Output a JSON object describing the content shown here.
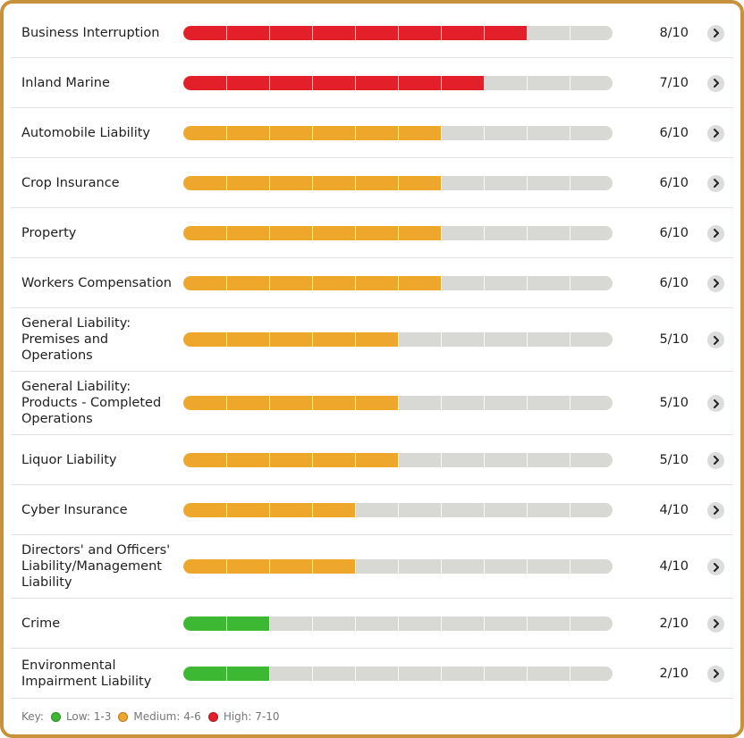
{
  "max_score": 10,
  "colors": {
    "high": "#e3202a",
    "medium": "#eea72a",
    "low": "#3cb832",
    "track": "#d8d8d4",
    "frame": "#c8923a"
  },
  "rows": [
    {
      "label": [
        "Business Interruption"
      ],
      "score": 8,
      "score_text": "8/10",
      "level": "high"
    },
    {
      "label": [
        "Inland Marine"
      ],
      "score": 7,
      "score_text": "7/10",
      "level": "high"
    },
    {
      "label": [
        "Automobile Liability"
      ],
      "score": 6,
      "score_text": "6/10",
      "level": "medium"
    },
    {
      "label": [
        "Crop Insurance"
      ],
      "score": 6,
      "score_text": "6/10",
      "level": "medium"
    },
    {
      "label": [
        "Property"
      ],
      "score": 6,
      "score_text": "6/10",
      "level": "medium"
    },
    {
      "label": [
        "Workers Compensation"
      ],
      "score": 6,
      "score_text": "6/10",
      "level": "medium"
    },
    {
      "label": [
        "General Liability:",
        "Premises and",
        "Operations"
      ],
      "score": 5,
      "score_text": "5/10",
      "level": "medium"
    },
    {
      "label": [
        "General Liability:",
        "Products - Completed",
        "Operations"
      ],
      "score": 5,
      "score_text": "5/10",
      "level": "medium"
    },
    {
      "label": [
        "Liquor Liability"
      ],
      "score": 5,
      "score_text": "5/10",
      "level": "medium"
    },
    {
      "label": [
        "Cyber Insurance"
      ],
      "score": 4,
      "score_text": "4/10",
      "level": "medium"
    },
    {
      "label": [
        "Directors' and Officers'",
        "Liability/Management",
        "Liability"
      ],
      "score": 4,
      "score_text": "4/10",
      "level": "medium"
    },
    {
      "label": [
        "Crime"
      ],
      "score": 2,
      "score_text": "2/10",
      "level": "low"
    },
    {
      "label": [
        "Environmental",
        "Impairment Liability"
      ],
      "score": 2,
      "score_text": "2/10",
      "level": "low"
    }
  ],
  "key": {
    "title": "Key:",
    "items": [
      {
        "label": "Low: 1-3",
        "level": "low"
      },
      {
        "label": "Medium: 4-6",
        "level": "medium"
      },
      {
        "label": "High: 7-10",
        "level": "high"
      }
    ]
  },
  "icons": {
    "row_action": "chevron-right-icon"
  }
}
